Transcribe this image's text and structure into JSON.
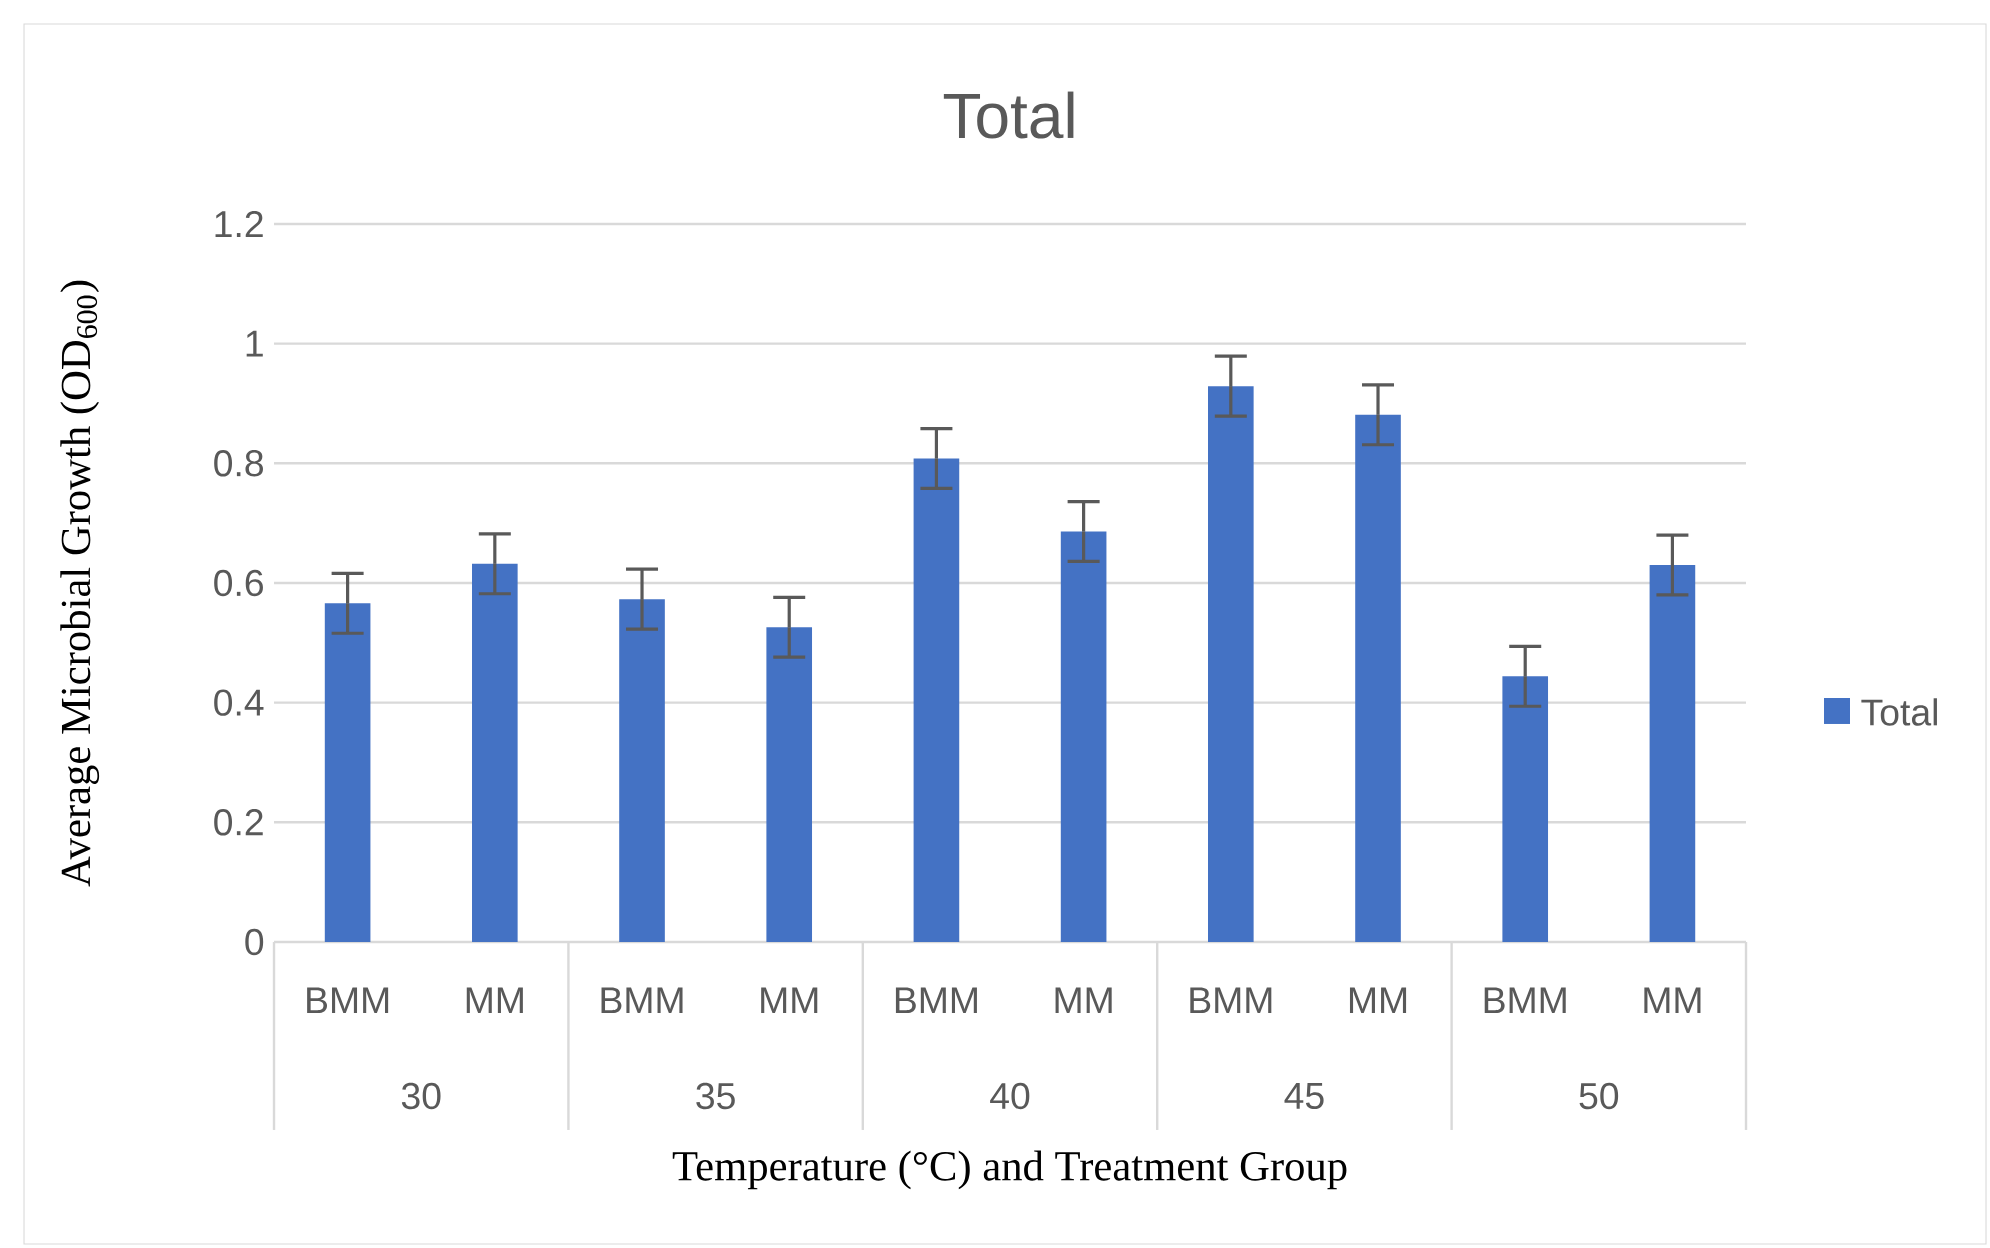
{
  "chart_data": {
    "type": "bar",
    "title": "Total",
    "xlabel": "Temperature (°C) and Treatment Group",
    "ylabel": "Average Microbial Growth (OD$_{600}$)",
    "categories": [
      "BMM",
      "MM",
      "BMM",
      "MM",
      "BMM",
      "MM",
      "BMM",
      "MM",
      "BMM",
      "MM"
    ],
    "annotations": [
      "30",
      "35",
      "40",
      "45",
      "50"
    ],
    "series": [
      {
        "name": "Total",
        "color": "#4472c4",
        "values": [
          0.566,
          0.632,
          0.573,
          0.526,
          0.808,
          0.686,
          0.929,
          0.881,
          0.444,
          0.63
        ],
        "errors": [
          0.05,
          0.05,
          0.05,
          0.05,
          0.05,
          0.05,
          0.05,
          0.05,
          0.05,
          0.05
        ]
      }
    ],
    "ylim": [
      0,
      1.2
    ],
    "yticks": [
      0,
      0.2,
      0.4,
      0.6,
      0.8,
      1,
      1.2
    ],
    "grid": "y",
    "legend": "right"
  }
}
